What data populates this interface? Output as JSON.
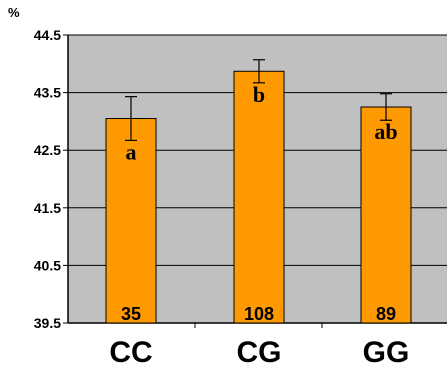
{
  "chart_data": {
    "type": "bar",
    "ylabel": "%",
    "categories": [
      "CC",
      "CG",
      "GG"
    ],
    "values": [
      43.05,
      43.87,
      43.25
    ],
    "errors": [
      0.38,
      0.2,
      0.23
    ],
    "significance": [
      "a",
      "b",
      "ab"
    ],
    "sample_sizes": [
      "35",
      "108",
      "89"
    ],
    "ylim": [
      39.5,
      44.5
    ],
    "yticks": [
      39.5,
      40.5,
      41.5,
      42.5,
      43.5,
      44.5
    ],
    "ytick_labels": [
      "39.5",
      "40.5",
      "41.5",
      "42.5",
      "43.5",
      "44.5"
    ],
    "grid": true,
    "legend": "none",
    "colors": {
      "bar": "#FF9900",
      "bar_border": "#000000",
      "plot_background": "#C0C0C0",
      "gridline": "#000000"
    }
  }
}
